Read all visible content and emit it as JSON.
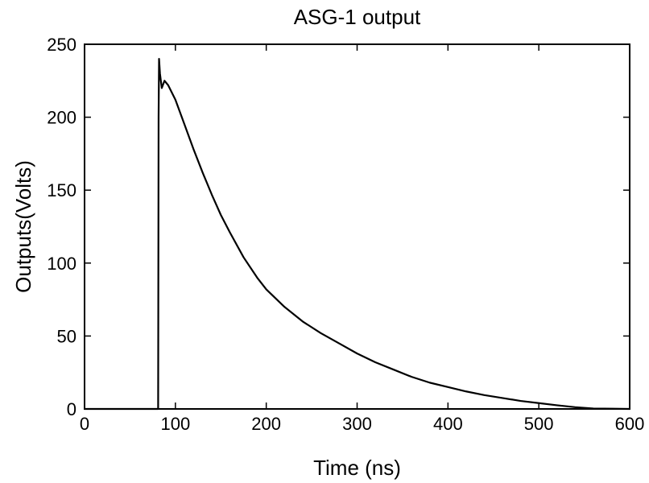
{
  "chart_data": {
    "type": "line",
    "title": "ASG-1 output",
    "xlabel": "Time (ns)",
    "ylabel": "Outputs(Volts)",
    "xlim": [
      0,
      600
    ],
    "ylim": [
      0,
      250
    ],
    "xticks": [
      0,
      100,
      200,
      300,
      400,
      500,
      600
    ],
    "yticks": [
      0,
      50,
      100,
      150,
      200,
      250
    ],
    "xtick_labels": [
      "0",
      "100",
      "200",
      "300",
      "400",
      "500",
      "600"
    ],
    "ytick_labels": [
      "0",
      "50",
      "100",
      "150",
      "200",
      "250"
    ],
    "grid": false,
    "legend": "none",
    "line_color": "#000000",
    "series": [
      {
        "x": [
          0,
          81,
          81.5,
          82,
          83,
          85,
          88,
          92,
          100,
          110,
          120,
          130,
          140,
          150,
          160,
          175,
          190,
          200,
          220,
          240,
          260,
          280,
          300,
          320,
          340,
          360,
          380,
          400,
          420,
          440,
          460,
          480,
          500,
          520,
          540,
          560,
          600
        ],
        "y": [
          0,
          0,
          200,
          240,
          230,
          220,
          225,
          222,
          212,
          195,
          178,
          162,
          147,
          133,
          121,
          104,
          90,
          82,
          70,
          60,
          52,
          45,
          38,
          32,
          27,
          22,
          18,
          15,
          12,
          9.5,
          7.5,
          5.5,
          4,
          2.5,
          1.2,
          0.3,
          0
        ]
      }
    ]
  }
}
